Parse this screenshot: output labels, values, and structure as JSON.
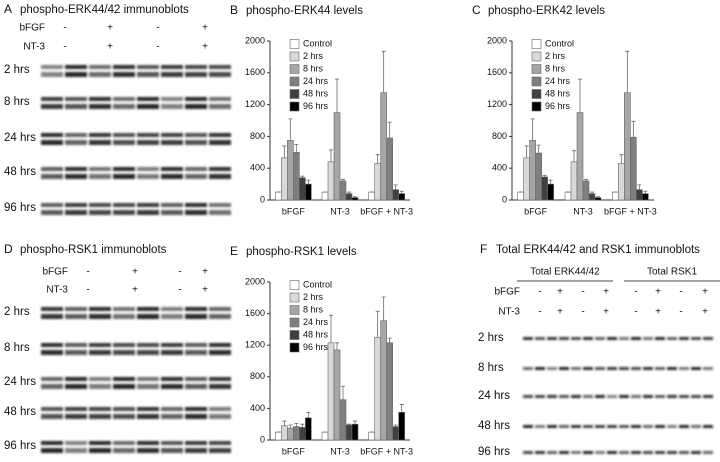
{
  "chart_data": [
    {
      "type": "bar",
      "panel": "B",
      "title": "phospho-ERK44 levels",
      "categories": [
        "bFGF",
        "NT-3",
        "bFGF + NT-3"
      ],
      "series": [
        {
          "name": "Control",
          "color": "#ffffff",
          "values": [
            100,
            100,
            100
          ],
          "errors": [
            0,
            0,
            0
          ]
        },
        {
          "name": "2 hrs",
          "color": "#d9d9d9",
          "values": [
            530,
            480,
            460
          ],
          "errors": [
            150,
            150,
            110
          ]
        },
        {
          "name": "8 hrs",
          "color": "#a6a6a6",
          "values": [
            750,
            1100,
            1350
          ],
          "errors": [
            270,
            420,
            520
          ]
        },
        {
          "name": "24 hrs",
          "color": "#7f7f7f",
          "values": [
            600,
            240,
            780
          ],
          "errors": [
            100,
            20,
            200
          ]
        },
        {
          "name": "48 hrs",
          "color": "#404040",
          "values": [
            280,
            80,
            130
          ],
          "errors": [
            20,
            20,
            60
          ]
        },
        {
          "name": "96 hrs",
          "color": "#000000",
          "values": [
            200,
            30,
            80
          ],
          "errors": [
            50,
            10,
            30
          ]
        }
      ],
      "ylim": [
        0,
        2000
      ],
      "yticks": [
        0,
        400,
        800,
        1200,
        1600,
        2000
      ],
      "legend": "upper-left"
    },
    {
      "type": "bar",
      "panel": "C",
      "title": "phospho-ERK42 levels",
      "categories": [
        "bFGF",
        "NT-3",
        "bFGF + NT-3"
      ],
      "series": [
        {
          "name": "Control",
          "color": "#ffffff",
          "values": [
            100,
            100,
            100
          ],
          "errors": [
            0,
            0,
            0
          ]
        },
        {
          "name": "2 hrs",
          "color": "#d9d9d9",
          "values": [
            530,
            480,
            460
          ],
          "errors": [
            150,
            140,
            110
          ]
        },
        {
          "name": "8 hrs",
          "color": "#a6a6a6",
          "values": [
            750,
            1100,
            1350
          ],
          "errors": [
            270,
            420,
            520
          ]
        },
        {
          "name": "24 hrs",
          "color": "#7f7f7f",
          "values": [
            590,
            240,
            790
          ],
          "errors": [
            100,
            20,
            200
          ]
        },
        {
          "name": "48 hrs",
          "color": "#404040",
          "values": [
            290,
            80,
            130
          ],
          "errors": [
            20,
            20,
            60
          ]
        },
        {
          "name": "96 hrs",
          "color": "#000000",
          "values": [
            200,
            30,
            80
          ],
          "errors": [
            50,
            10,
            30
          ]
        }
      ],
      "ylim": [
        0,
        2000
      ],
      "yticks": [
        0,
        400,
        800,
        1200,
        1600,
        2000
      ],
      "legend": "upper-left"
    },
    {
      "type": "bar",
      "panel": "E",
      "title": "phospho-RSK1 levels",
      "categories": [
        "bFGF",
        "NT-3",
        "bFGF + NT-3"
      ],
      "series": [
        {
          "name": "Control",
          "color": "#ffffff",
          "values": [
            100,
            100,
            100
          ],
          "errors": [
            0,
            0,
            0
          ]
        },
        {
          "name": "2 hrs",
          "color": "#d9d9d9",
          "values": [
            180,
            1230,
            1300
          ],
          "errors": [
            60,
            350,
            330
          ]
        },
        {
          "name": "8 hrs",
          "color": "#a6a6a6",
          "values": [
            150,
            1140,
            1510
          ],
          "errors": [
            40,
            90,
            300
          ]
        },
        {
          "name": "24 hrs",
          "color": "#7f7f7f",
          "values": [
            170,
            510,
            1230
          ],
          "errors": [
            40,
            170,
            60
          ]
        },
        {
          "name": "48 hrs",
          "color": "#404040",
          "values": [
            160,
            190,
            170
          ],
          "errors": [
            40,
            10,
            20
          ]
        },
        {
          "name": "96 hrs",
          "color": "#000000",
          "values": [
            280,
            200,
            350
          ],
          "errors": [
            70,
            40,
            100
          ]
        }
      ],
      "ylim": [
        0,
        2000
      ],
      "yticks": [
        0,
        400,
        800,
        1200,
        1600,
        2000
      ],
      "legend": "upper-left"
    }
  ],
  "blots": [
    {
      "panel": "A",
      "title": "phospho-ERK44/42 immunoblots",
      "treatments": [
        {
          "label": "bFGF",
          "signs": [
            "-",
            "+",
            "-",
            "+"
          ]
        },
        {
          "label": "NT-3",
          "signs": [
            "-",
            "+",
            "-",
            "+"
          ]
        }
      ],
      "rows": [
        "2 hrs",
        "8 hrs",
        "24 hrs",
        "48 hrs",
        "96 hrs"
      ]
    },
    {
      "panel": "D",
      "title": "phospho-RSK1 immunoblots",
      "treatments": [
        {
          "label": "bFGF",
          "signs": [
            "-",
            "+",
            "-",
            "+"
          ]
        },
        {
          "label": "NT-3",
          "signs": [
            "-",
            "+",
            "-",
            "+"
          ]
        }
      ],
      "rows": [
        "2 hrs",
        "8 hrs",
        "24 hrs",
        "48 hrs",
        "96 hrs"
      ]
    },
    {
      "panel": "F",
      "title": "Total ERK44/42 and RSK1 immunoblots",
      "groups": [
        "Total ERK44/42",
        "Total RSK1"
      ],
      "treatments": [
        {
          "label": "bFGF",
          "signs": [
            "-",
            "+",
            "-",
            "+",
            "-",
            "+",
            "-",
            "+"
          ]
        },
        {
          "label": "NT-3",
          "signs": [
            "-",
            "+",
            "-",
            "+",
            "-",
            "+",
            "-",
            "+"
          ]
        }
      ],
      "rows": [
        "2 hrs",
        "8 hrs",
        "24 hrs",
        "48 hrs",
        "96 hrs"
      ]
    }
  ]
}
